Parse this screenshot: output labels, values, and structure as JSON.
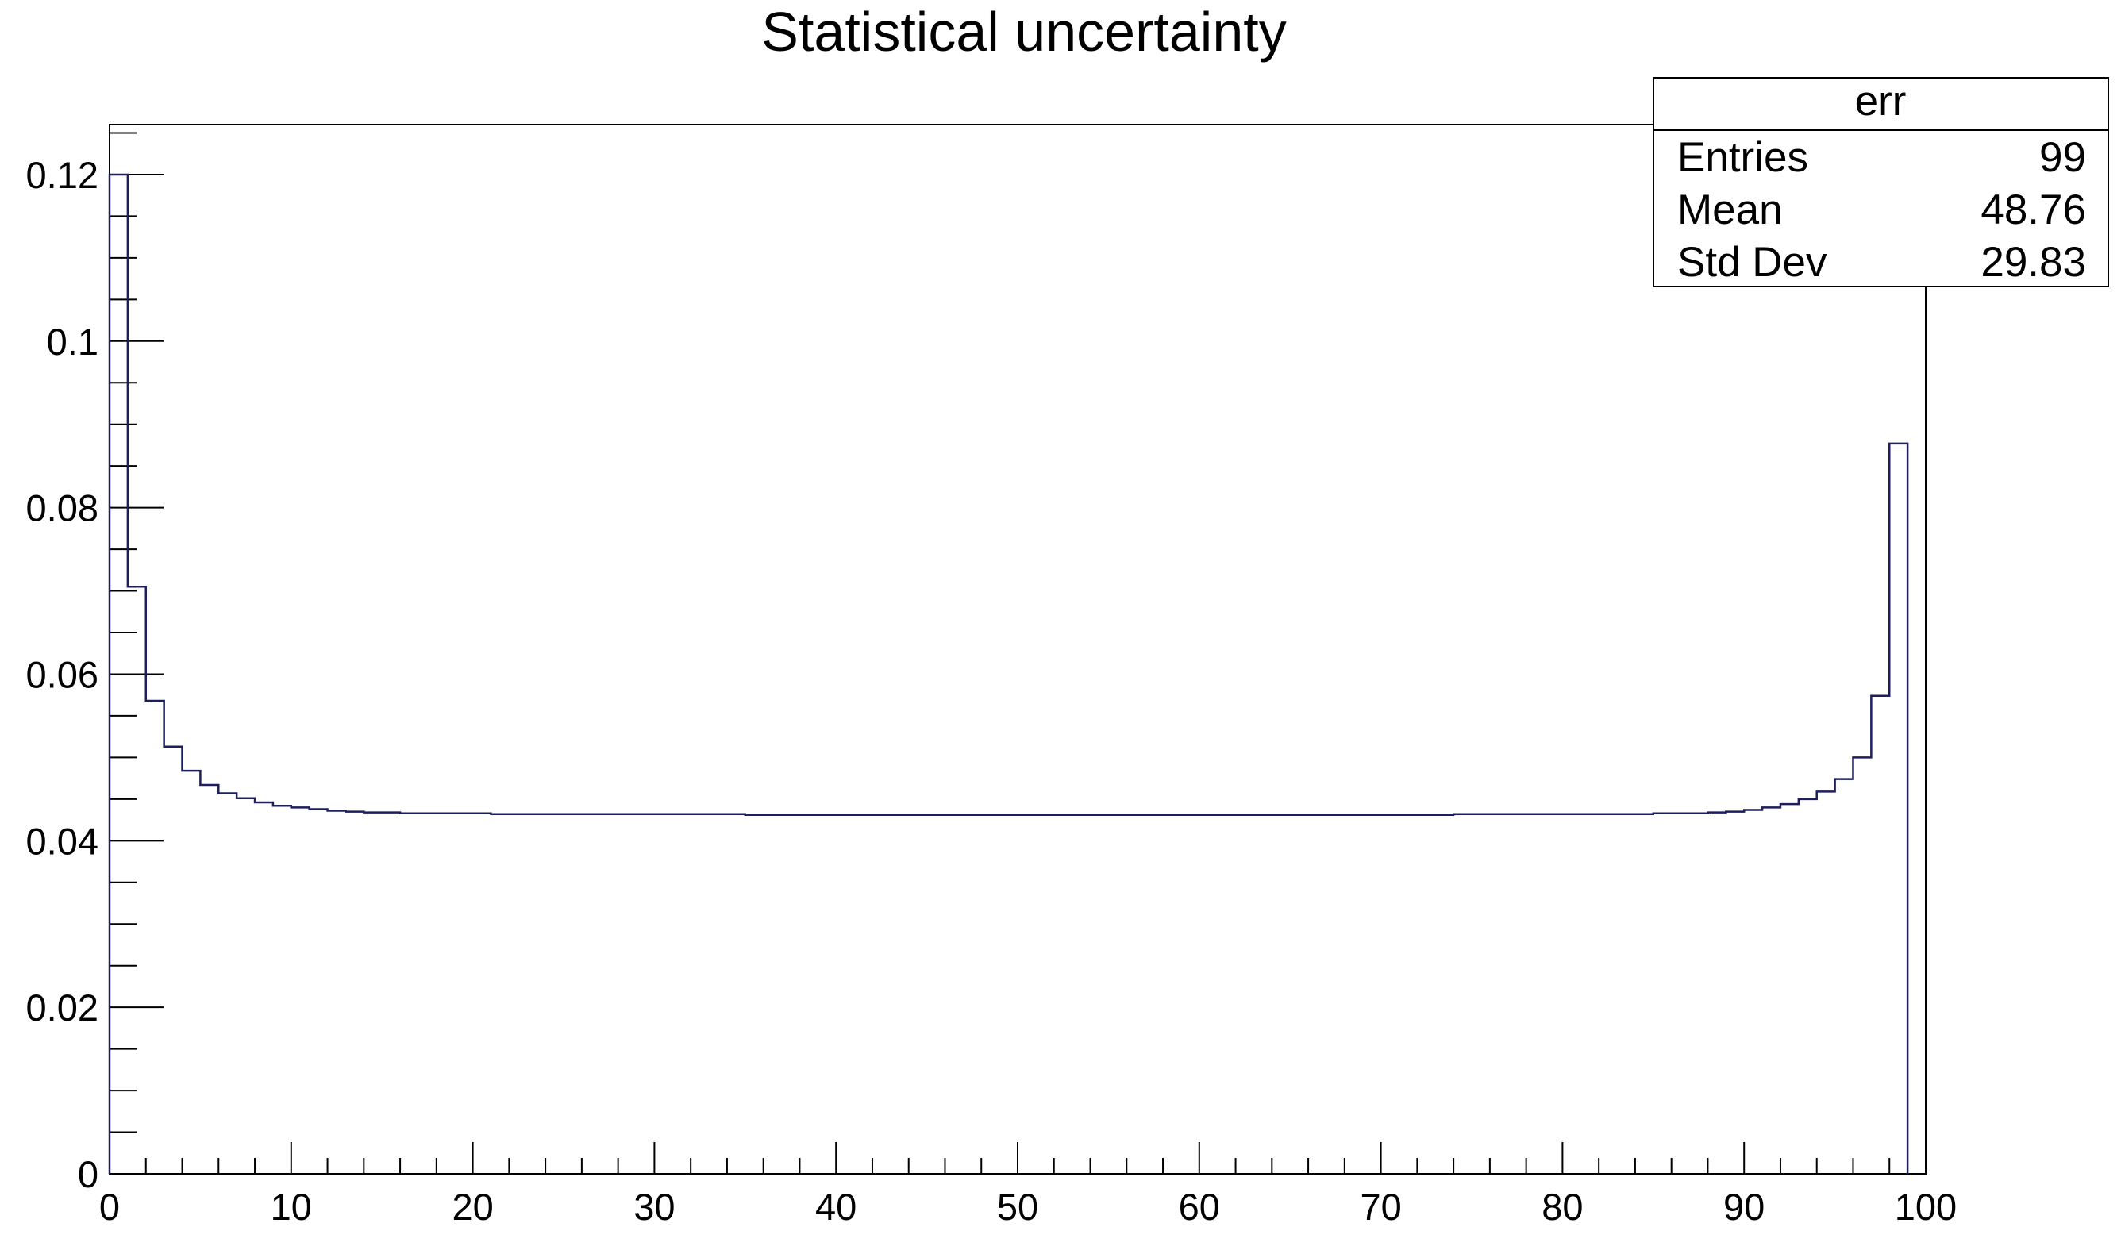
{
  "chart_data": {
    "type": "histogram",
    "title": "Statistical uncertainty",
    "xlabel": "",
    "ylabel": "",
    "xlim": [
      0,
      100
    ],
    "ylim": [
      0,
      0.126
    ],
    "x_ticks": [
      "0",
      "10",
      "20",
      "30",
      "40",
      "50",
      "60",
      "70",
      "80",
      "90",
      "100"
    ],
    "y_ticks": [
      "0",
      "0.02",
      "0.04",
      "0.06",
      "0.08",
      "0.1",
      "0.12"
    ],
    "bin_width": 1,
    "bins_start": 0,
    "values": [
      0.12,
      0.0705,
      0.0568,
      0.0513,
      0.0484,
      0.0467,
      0.0457,
      0.0451,
      0.0446,
      0.0442,
      0.044,
      0.0438,
      0.0436,
      0.0435,
      0.0434,
      0.0434,
      0.0433,
      0.0433,
      0.0433,
      0.0433,
      0.0433,
      0.0432,
      0.0432,
      0.0432,
      0.0432,
      0.0432,
      0.0432,
      0.0432,
      0.0432,
      0.0432,
      0.0432,
      0.0432,
      0.0432,
      0.0432,
      0.0432,
      0.0431,
      0.0431,
      0.0431,
      0.0431,
      0.0431,
      0.0431,
      0.0431,
      0.0431,
      0.0431,
      0.0431,
      0.0431,
      0.0431,
      0.0431,
      0.0431,
      0.0431,
      0.0431,
      0.0431,
      0.0431,
      0.0431,
      0.0431,
      0.0431,
      0.0431,
      0.0431,
      0.0431,
      0.0431,
      0.0431,
      0.0431,
      0.0431,
      0.0431,
      0.0431,
      0.0431,
      0.0431,
      0.0431,
      0.0431,
      0.0431,
      0.0431,
      0.0431,
      0.0431,
      0.0431,
      0.0432,
      0.0432,
      0.0432,
      0.0432,
      0.0432,
      0.0432,
      0.0432,
      0.0432,
      0.0432,
      0.0432,
      0.0432,
      0.0433,
      0.0433,
      0.0433,
      0.0434,
      0.0435,
      0.0437,
      0.044,
      0.0444,
      0.045,
      0.0459,
      0.0474,
      0.05,
      0.0574,
      0.0877
    ],
    "line_color": "#1c1f5c",
    "stats_box": {
      "name": "err",
      "rows": [
        {
          "label": "Entries",
          "value": "99"
        },
        {
          "label": "Mean",
          "value": "48.76"
        },
        {
          "label": "Std Dev",
          "value": "29.83"
        }
      ]
    },
    "grid": false,
    "legend": "top-right"
  }
}
